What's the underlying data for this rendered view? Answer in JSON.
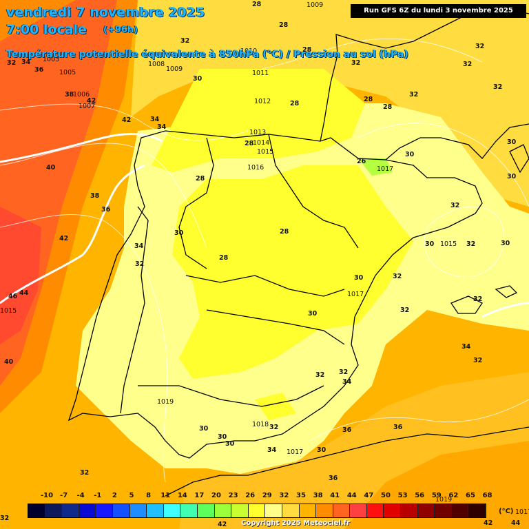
{
  "header": {
    "date_line": "vendredi 7 novembre 2025",
    "time_line": "7:00 locale",
    "lead_time": "(+96h)",
    "parameter_line": "Température potentielle équivalente à 850hPa (°C) / Pression au sol (hPa)",
    "run_info": "Run GFS 6Z du lundi 3 novembre 2025"
  },
  "colors": {
    "pale_yellow": "#ffff99",
    "bright_yellow": "#ffff00",
    "light_orange": "#ffe066",
    "gold": "#ffcc33",
    "orange": "#ffaa00",
    "dark_orange": "#ff7a1a",
    "red_orange": "#ff5a33",
    "green": "#b5ff40",
    "border_line": "#000000",
    "coast_line": "#ffffff"
  },
  "temperature_labels": [
    "28",
    "1009",
    "28",
    "32",
    "32",
    "34",
    "36",
    "1005",
    "32",
    "1003",
    "30",
    "1008",
    "1009",
    "1011",
    "1012",
    "28",
    "1010",
    "28",
    "32",
    "28",
    "28",
    "32",
    "32",
    "32",
    "34",
    "34",
    "42",
    "38",
    "1006",
    "1007",
    "42",
    "40",
    "38",
    "36",
    "1013",
    "28",
    "1014",
    "1015",
    "1016",
    "28",
    "26",
    "1017",
    "30",
    "30",
    "32",
    "42",
    "34",
    "32",
    "30",
    "28",
    "28",
    "30",
    "30",
    "30",
    "1015",
    "32",
    "30",
    "32",
    "46",
    "44",
    "1015",
    "32",
    "1017",
    "30",
    "32",
    "34",
    "32",
    "40",
    "1019",
    "32",
    "34",
    "32",
    "36",
    "36",
    "30",
    "30",
    "1018",
    "32",
    "30",
    "34",
    "1017",
    "30",
    "36",
    "32",
    "42",
    "44",
    "1017",
    "1019",
    "42",
    "32"
  ],
  "legend": {
    "values": [
      "-10",
      "-7",
      "-4",
      "-1",
      "2",
      "5",
      "8",
      "11",
      "14",
      "17",
      "20",
      "23",
      "26",
      "29",
      "32",
      "35",
      "38",
      "41",
      "44",
      "47",
      "50",
      "53",
      "56",
      "59",
      "62",
      "65",
      "68"
    ],
    "unit": "(°C)",
    "colors": [
      "#00002e",
      "#0c1a5c",
      "#102a8c",
      "#0a0ad0",
      "#1818ff",
      "#1450ff",
      "#1f8cff",
      "#20c0ff",
      "#40ffff",
      "#40ffb0",
      "#5cff5c",
      "#9cff3c",
      "#c8ff30",
      "#ffff30",
      "#ffff8c",
      "#ffdc40",
      "#ffb400",
      "#ff8c00",
      "#ff6420",
      "#ff4040",
      "#ff1010",
      "#e00000",
      "#b80000",
      "#900000",
      "#700000",
      "#500000",
      "#300000"
    ]
  },
  "copyright": "Copyright 2025 Meteociel.fr"
}
